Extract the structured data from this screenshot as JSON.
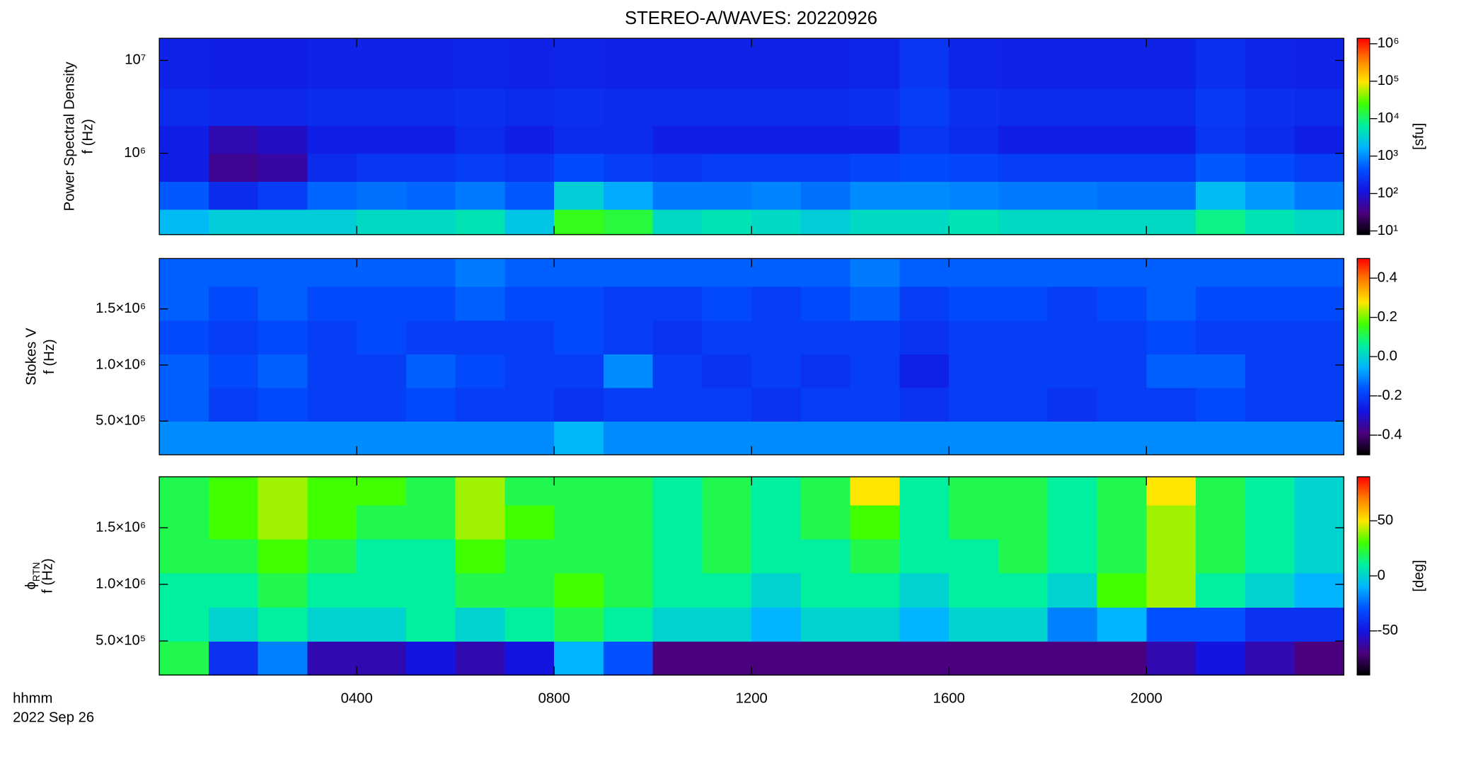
{
  "chart_data": [
    {
      "type": "heatmap",
      "title": "STEREO-A/WAVES: 20220926",
      "ylabel": [
        "Power Spectral Density",
        "f (Hz)"
      ],
      "zlabel": "[sfu]",
      "xlim": [
        0,
        24
      ],
      "ylim": [
        133000,
        17300000
      ],
      "ylog": true,
      "yticks": [
        {
          "value": 1000000,
          "label": "10⁶"
        },
        {
          "value": 10000000,
          "label": "10⁷"
        }
      ],
      "zlim": [
        8,
        1400000
      ],
      "zlog": true,
      "zticks": [
        {
          "value": 10,
          "label": "10¹"
        },
        {
          "value": 100,
          "label": "10²"
        },
        {
          "value": 1000,
          "label": "10³"
        },
        {
          "value": 10000,
          "label": "10⁴"
        },
        {
          "value": 100000,
          "label": "10⁵"
        },
        {
          "value": 1000000,
          "label": "10⁶"
        }
      ],
      "colormap": [
        "#000000",
        "#4b007f",
        "#1414e0",
        "#0050ff",
        "#00b4ff",
        "#00f0a0",
        "#40ff00",
        "#ffe600",
        "#ff8000",
        "#ff0000"
      ],
      "x_bins": [
        0,
        1,
        2,
        3,
        4,
        5,
        6,
        7,
        8,
        9,
        10,
        11,
        12,
        13,
        14,
        15,
        16,
        17,
        18,
        19,
        20,
        21,
        22,
        23,
        24
      ],
      "y_bins": [
        133000,
        250000,
        500000,
        1000000,
        2000000,
        5000000,
        17300000
      ],
      "z": [
        [
          2000,
          3000,
          3000,
          3000,
          4000,
          4000,
          5000,
          2500,
          20000,
          15000,
          4000,
          5000,
          4000,
          3000,
          4000,
          4000,
          5000,
          4000,
          4000,
          4000,
          4000,
          8000,
          5000,
          4000
        ],
        [
          500,
          200,
          300,
          600,
          700,
          600,
          800,
          500,
          3000,
          1500,
          800,
          800,
          900,
          700,
          1000,
          1000,
          900,
          800,
          800,
          700,
          700,
          2000,
          1200,
          800
        ],
        [
          150,
          40,
          50,
          200,
          250,
          250,
          300,
          250,
          400,
          300,
          250,
          300,
          300,
          300,
          350,
          400,
          350,
          300,
          300,
          300,
          300,
          500,
          400,
          300
        ],
        [
          150,
          60,
          80,
          150,
          150,
          150,
          200,
          150,
          200,
          200,
          150,
          150,
          150,
          150,
          150,
          250,
          200,
          150,
          150,
          150,
          150,
          250,
          200,
          150
        ],
        [
          200,
          180,
          180,
          200,
          200,
          200,
          220,
          200,
          220,
          200,
          200,
          200,
          200,
          200,
          220,
          300,
          220,
          200,
          200,
          200,
          200,
          280,
          220,
          200
        ],
        [
          160,
          150,
          150,
          160,
          160,
          160,
          170,
          160,
          170,
          160,
          160,
          160,
          160,
          160,
          170,
          250,
          170,
          160,
          160,
          160,
          160,
          220,
          170,
          160
        ]
      ]
    },
    {
      "type": "heatmap",
      "ylabel": [
        "Stokes V",
        "f (Hz)"
      ],
      "xlim": [
        0,
        24
      ],
      "ylim": [
        200000,
        1950000
      ],
      "ylog": false,
      "yticks": [
        {
          "value": 500000,
          "label": "5.0×10⁵"
        },
        {
          "value": 1000000,
          "label": "1.0×10⁶"
        },
        {
          "value": 1500000,
          "label": "1.5×10⁶"
        }
      ],
      "zlim": [
        -0.5,
        0.5
      ],
      "zlog": false,
      "zticks": [
        -0.4,
        -0.2,
        {
          "value": 0,
          "label": "0.0"
        },
        0.2,
        0.4
      ],
      "colormap": [
        "#000000",
        "#4b007f",
        "#1414e0",
        "#0050ff",
        "#00b4ff",
        "#00f0a0",
        "#40ff00",
        "#ffe600",
        "#ff8000",
        "#ff0000"
      ],
      "x_bins": [
        0,
        1,
        2,
        3,
        4,
        5,
        6,
        7,
        8,
        9,
        10,
        11,
        12,
        13,
        14,
        15,
        16,
        17,
        18,
        19,
        20,
        21,
        22,
        23,
        24
      ],
      "y_bins": [
        200000,
        500000,
        800000,
        1100000,
        1400000,
        1700000,
        1950000
      ],
      "z": [
        [
          -0.1,
          -0.1,
          -0.1,
          -0.1,
          -0.1,
          -0.1,
          -0.1,
          -0.1,
          -0.05,
          -0.1,
          -0.1,
          -0.1,
          -0.1,
          -0.1,
          -0.1,
          -0.1,
          -0.1,
          -0.1,
          -0.1,
          -0.1,
          -0.1,
          -0.1,
          -0.1,
          -0.1
        ],
        [
          -0.15,
          -0.2,
          -0.18,
          -0.2,
          -0.2,
          -0.18,
          -0.2,
          -0.2,
          -0.22,
          -0.2,
          -0.2,
          -0.2,
          -0.22,
          -0.2,
          -0.2,
          -0.22,
          -0.2,
          -0.2,
          -0.22,
          -0.2,
          -0.2,
          -0.18,
          -0.2,
          -0.2
        ],
        [
          -0.15,
          -0.18,
          -0.15,
          -0.2,
          -0.2,
          -0.15,
          -0.18,
          -0.2,
          -0.2,
          -0.1,
          -0.2,
          -0.22,
          -0.2,
          -0.22,
          -0.2,
          -0.25,
          -0.2,
          -0.2,
          -0.2,
          -0.2,
          -0.15,
          -0.15,
          -0.2,
          -0.2
        ],
        [
          -0.18,
          -0.2,
          -0.18,
          -0.2,
          -0.18,
          -0.2,
          -0.2,
          -0.2,
          -0.18,
          -0.2,
          -0.22,
          -0.2,
          -0.2,
          -0.2,
          -0.2,
          -0.22,
          -0.2,
          -0.2,
          -0.2,
          -0.2,
          -0.18,
          -0.2,
          -0.2,
          -0.2
        ],
        [
          -0.15,
          -0.18,
          -0.15,
          -0.18,
          -0.18,
          -0.18,
          -0.15,
          -0.18,
          -0.18,
          -0.2,
          -0.2,
          -0.18,
          -0.2,
          -0.18,
          -0.15,
          -0.2,
          -0.18,
          -0.18,
          -0.2,
          -0.18,
          -0.15,
          -0.18,
          -0.18,
          -0.18
        ],
        [
          -0.15,
          -0.15,
          -0.15,
          -0.15,
          -0.15,
          -0.15,
          -0.12,
          -0.15,
          -0.15,
          -0.15,
          -0.15,
          -0.15,
          -0.15,
          -0.15,
          -0.12,
          -0.15,
          -0.15,
          -0.15,
          -0.15,
          -0.15,
          -0.15,
          -0.15,
          -0.15,
          -0.15
        ]
      ]
    },
    {
      "type": "heatmap",
      "ylabel": [
        "ϕ",
        "RTN",
        "f (Hz)"
      ],
      "zlabel": "[deg]",
      "xlabel": "hhmm",
      "xlabel_date": "2022 Sep 26",
      "xlim": [
        0,
        24
      ],
      "ylim": [
        200000,
        1950000
      ],
      "ylog": false,
      "xticks": [
        {
          "value": 4,
          "label": "0400"
        },
        {
          "value": 8,
          "label": "0800"
        },
        {
          "value": 12,
          "label": "1200"
        },
        {
          "value": 16,
          "label": "1600"
        },
        {
          "value": 20,
          "label": "2000"
        }
      ],
      "yticks": [
        {
          "value": 500000,
          "label": "5.0×10⁵"
        },
        {
          "value": 1000000,
          "label": "1.0×10⁶"
        },
        {
          "value": 1500000,
          "label": "1.5×10⁶"
        }
      ],
      "zlim": [
        -90,
        90
      ],
      "zlog": false,
      "zticks": [
        -50,
        0,
        50
      ],
      "colormap": [
        "#000000",
        "#4b007f",
        "#1414e0",
        "#0050ff",
        "#00b4ff",
        "#00f0a0",
        "#40ff00",
        "#ffe600",
        "#ff8000",
        "#ff0000"
      ],
      "x_bins": [
        0,
        1,
        2,
        3,
        4,
        5,
        6,
        7,
        8,
        9,
        10,
        11,
        12,
        13,
        14,
        15,
        16,
        17,
        18,
        19,
        20,
        21,
        22,
        23,
        24
      ],
      "y_bins": [
        200000,
        500000,
        800000,
        1100000,
        1400000,
        1700000,
        1950000
      ],
      "z": [
        [
          20,
          -40,
          -20,
          -60,
          -60,
          -50,
          -60,
          -50,
          -10,
          -30,
          -70,
          -70,
          -70,
          -70,
          -70,
          -70,
          -70,
          -70,
          -70,
          -70,
          -60,
          -50,
          -60,
          -70
        ],
        [
          10,
          0,
          10,
          0,
          0,
          10,
          0,
          10,
          20,
          10,
          0,
          0,
          -10,
          0,
          0,
          -10,
          0,
          0,
          -20,
          -10,
          -30,
          -30,
          -40,
          -40
        ],
        [
          10,
          10,
          20,
          10,
          10,
          10,
          20,
          20,
          30,
          20,
          10,
          10,
          0,
          10,
          10,
          0,
          10,
          10,
          0,
          30,
          40,
          10,
          0,
          -10
        ],
        [
          20,
          20,
          30,
          20,
          10,
          10,
          30,
          20,
          20,
          20,
          10,
          20,
          10,
          10,
          20,
          10,
          10,
          20,
          10,
          20,
          40,
          20,
          10,
          0
        ],
        [
          20,
          30,
          40,
          30,
          20,
          20,
          40,
          30,
          20,
          20,
          10,
          20,
          10,
          20,
          30,
          10,
          20,
          20,
          10,
          20,
          40,
          20,
          10,
          0
        ],
        [
          20,
          30,
          40,
          30,
          30,
          20,
          40,
          20,
          20,
          20,
          10,
          20,
          10,
          20,
          50,
          10,
          20,
          20,
          10,
          20,
          50,
          20,
          10,
          0
        ]
      ]
    }
  ]
}
